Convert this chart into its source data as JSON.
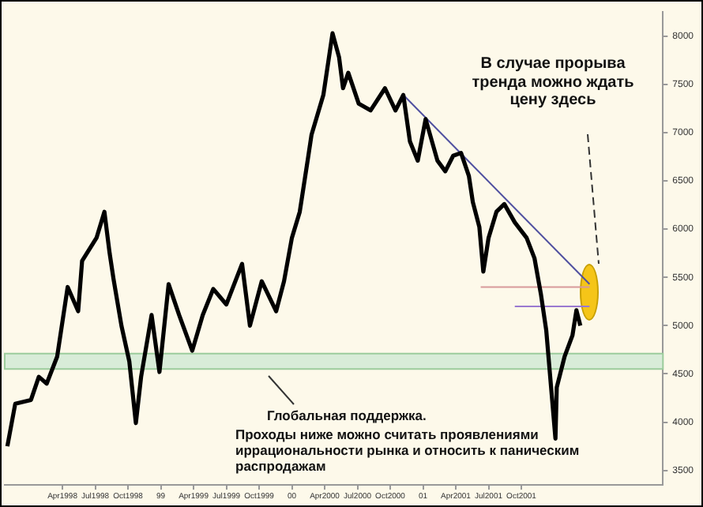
{
  "chart_data": {
    "type": "line",
    "annotations": [
      "В случае прорыва тренда можно ждать цену здесь",
      "Глобальная поддержка.",
      "Проходы ниже можно считать проявлениями иррациональности рынка и относить к паническим распродажам"
    ],
    "series": [
      {
        "color": "#000000",
        "x": [
          1997.83,
          1997.89,
          1998.01,
          1998.07,
          1998.13,
          1998.21,
          1998.29,
          1998.37,
          1998.4,
          1998.51,
          1998.57,
          1998.61,
          1998.64,
          1998.7,
          1998.76,
          1998.81,
          1998.85,
          1998.93,
          1998.99,
          1999.06,
          1999.14,
          1999.24,
          1999.32,
          1999.4,
          1999.5,
          1999.62,
          1999.68,
          1999.77,
          1999.88,
          1999.94,
          2000.0,
          2000.06,
          2000.12,
          2000.15,
          2000.24,
          2000.31,
          2000.36,
          2000.39,
          2000.43,
          2000.51,
          2000.6,
          2000.71,
          2000.79,
          2000.85,
          2000.9,
          2000.96,
          2001.02,
          2001.11,
          2001.17,
          2001.23,
          2001.29,
          2001.35,
          2001.38,
          2001.43,
          2001.46,
          2001.5,
          2001.56,
          2001.62,
          2001.7,
          2001.79,
          2001.85,
          2001.9,
          2001.94,
          2001.98,
          2002.01,
          2002.02,
          2002.08,
          2002.14,
          2002.17,
          2002.2
        ],
        "values": [
          3750,
          4190,
          4230,
          4470,
          4400,
          4680,
          5400,
          5150,
          5670,
          5910,
          6180,
          5750,
          5480,
          5000,
          4630,
          3990,
          4470,
          5110,
          4520,
          5430,
          5110,
          4740,
          5110,
          5380,
          5220,
          5640,
          5000,
          5460,
          5150,
          5460,
          5910,
          6180,
          6710,
          6980,
          7390,
          8030,
          7780,
          7460,
          7620,
          7300,
          7230,
          7460,
          7230,
          7390,
          6910,
          6710,
          7140,
          6710,
          6600,
          6760,
          6790,
          6550,
          6280,
          6020,
          5560,
          5910,
          6180,
          6260,
          6070,
          5910,
          5700,
          5320,
          4950,
          4310,
          3830,
          4360,
          4680,
          4900,
          5160,
          5000
        ]
      },
      {
        "type": "line",
        "color": "#5050a0",
        "x": [
          2000.85,
          2002.27
        ],
        "values": [
          7390,
          5430
        ]
      },
      {
        "type": "line",
        "color": "#d89a9a",
        "x": [
          2001.44,
          2002.27
        ],
        "values": [
          5400,
          5400
        ]
      },
      {
        "type": "line",
        "color": "#9a7ad0",
        "x": [
          2001.7,
          2002.27
        ],
        "values": [
          5200,
          5200
        ]
      }
    ],
    "bands": [
      {
        "axis": "y",
        "from": 4550,
        "to": 4710,
        "color": "#d8ecd8"
      }
    ],
    "xlim": [
      1997.81,
      2002.83
    ],
    "xticks": [
      {
        "value": 1998.25,
        "label": "Apr1998"
      },
      {
        "value": 1998.5,
        "label": "Jul1998"
      },
      {
        "value": 1998.75,
        "label": "Oct1998"
      },
      {
        "value": 1999.0,
        "label": "99"
      },
      {
        "value": 1999.25,
        "label": "Apr1999"
      },
      {
        "value": 1999.5,
        "label": "Jul1999"
      },
      {
        "value": 1999.75,
        "label": "Oct1999"
      },
      {
        "value": 2000.0,
        "label": "00"
      },
      {
        "value": 2000.25,
        "label": "Apr2000"
      },
      {
        "value": 2000.5,
        "label": "Jul2000"
      },
      {
        "value": 2000.75,
        "label": "Oct2000"
      },
      {
        "value": 2001.0,
        "label": "01"
      },
      {
        "value": 2001.25,
        "label": "Apr2001"
      },
      {
        "value": 2001.5,
        "label": "Jul2001"
      },
      {
        "value": 2001.75,
        "label": "Oct2001"
      }
    ],
    "ylim": [
      3350,
      8250
    ],
    "yticks": [
      3500,
      4000,
      4500,
      5000,
      5500,
      6000,
      6500,
      7000,
      7500,
      8000
    ],
    "grid": false,
    "legend": false,
    "marker": "none",
    "line_style": "solid"
  }
}
